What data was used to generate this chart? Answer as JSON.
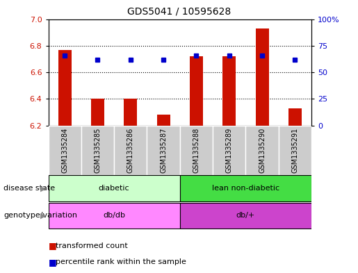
{
  "title": "GDS5041 / 10595628",
  "samples": [
    "GSM1335284",
    "GSM1335285",
    "GSM1335286",
    "GSM1335287",
    "GSM1335288",
    "GSM1335289",
    "GSM1335290",
    "GSM1335291"
  ],
  "transformed_count": [
    6.77,
    6.4,
    6.4,
    6.28,
    6.72,
    6.72,
    6.93,
    6.33
  ],
  "percentile_rank": [
    66,
    62,
    62,
    62,
    66,
    66,
    66,
    62
  ],
  "ylim_left": [
    6.2,
    7.0
  ],
  "ylim_right": [
    0,
    100
  ],
  "yticks_left": [
    6.2,
    6.4,
    6.6,
    6.8,
    7.0
  ],
  "yticks_right": [
    0,
    25,
    50,
    75,
    100
  ],
  "ytick_right_labels": [
    "0",
    "25",
    "50",
    "75",
    "100%"
  ],
  "bar_color": "#cc1100",
  "dot_color": "#0000cc",
  "bar_bottom": 6.2,
  "disease_state": [
    {
      "label": "diabetic",
      "start": 0,
      "end": 4,
      "color": "#ccffcc"
    },
    {
      "label": "lean non-diabetic",
      "start": 4,
      "end": 8,
      "color": "#44dd44"
    }
  ],
  "genotype": [
    {
      "label": "db/db",
      "start": 0,
      "end": 4,
      "color": "#ff88ff"
    },
    {
      "label": "db/+",
      "start": 4,
      "end": 8,
      "color": "#cc44cc"
    }
  ],
  "legend_bar_label": "transformed count",
  "legend_dot_label": "percentile rank within the sample",
  "left_ylabel_color": "#cc1100",
  "right_ylabel_color": "#0000cc",
  "grid_color": "#000000",
  "sample_bg_color": "#cccccc",
  "plot_bg": "#ffffff",
  "grid_dotted_ticks": [
    6.4,
    6.6,
    6.8
  ],
  "bar_width": 0.4,
  "dot_size": 5
}
